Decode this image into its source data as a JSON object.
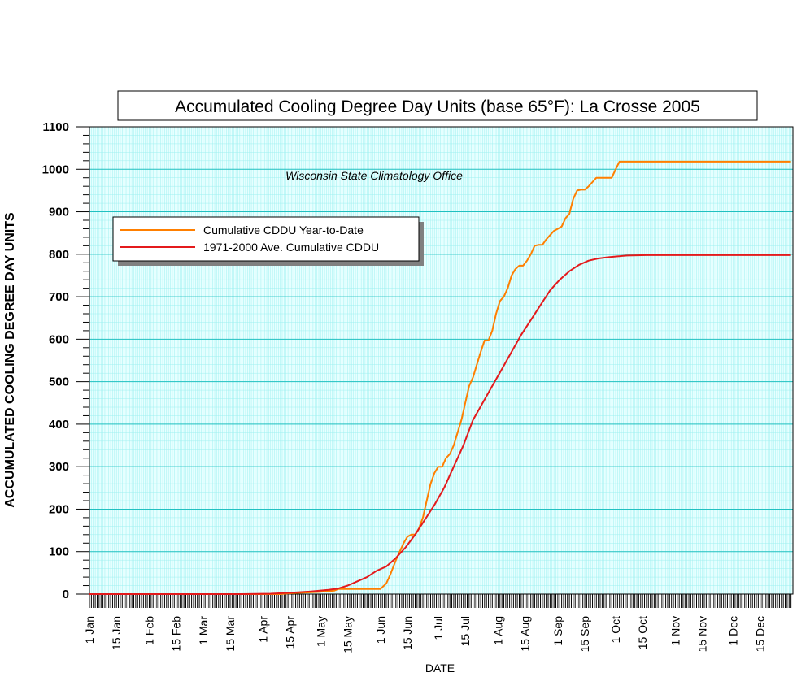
{
  "chart_data": {
    "type": "line",
    "title": "Accumulated Cooling Degree Day Units (base 65°F): La Crosse 2005",
    "annotation": "Wisconsin State Climatology Office",
    "xlabel": "DATE",
    "ylabel": "ACCUMULATED COOLING DEGREE DAY UNITS",
    "ylim": [
      0,
      1100
    ],
    "xlim_day_of_year": [
      1,
      365
    ],
    "y_ticks": [
      0,
      100,
      200,
      300,
      400,
      500,
      600,
      700,
      800,
      900,
      1000,
      1100
    ],
    "x_ticks": [
      {
        "label": "1 Jan",
        "day": 1
      },
      {
        "label": "15 Jan",
        "day": 15
      },
      {
        "label": "1 Feb",
        "day": 32
      },
      {
        "label": "15 Feb",
        "day": 46
      },
      {
        "label": "1 Mar",
        "day": 60
      },
      {
        "label": "15 Mar",
        "day": 74
      },
      {
        "label": "1 Apr",
        "day": 91
      },
      {
        "label": "15 Apr",
        "day": 105
      },
      {
        "label": "1 May",
        "day": 121
      },
      {
        "label": "15 May",
        "day": 135
      },
      {
        "label": "1 Jun",
        "day": 152
      },
      {
        "label": "15 Jun",
        "day": 166
      },
      {
        "label": "1 Jul",
        "day": 182
      },
      {
        "label": "15 Jul",
        "day": 196
      },
      {
        "label": "1 Aug",
        "day": 213
      },
      {
        "label": "15 Aug",
        "day": 227
      },
      {
        "label": "1 Sep",
        "day": 244
      },
      {
        "label": "15 Sep",
        "day": 258
      },
      {
        "label": "1 Oct",
        "day": 274
      },
      {
        "label": "15 Oct",
        "day": 288
      },
      {
        "label": "1 Nov",
        "day": 305
      },
      {
        "label": "15 Nov",
        "day": 319
      },
      {
        "label": "1 Dec",
        "day": 335
      },
      {
        "label": "15 Dec",
        "day": 349
      }
    ],
    "grid": true,
    "legend_position": "upper-left",
    "series": [
      {
        "name": "Cumulative CDDU Year-to-Date",
        "color": "#ff7f00",
        "points": [
          [
            1,
            0
          ],
          [
            100,
            0
          ],
          [
            105,
            2
          ],
          [
            110,
            3
          ],
          [
            120,
            5
          ],
          [
            128,
            8
          ],
          [
            130,
            12
          ],
          [
            150,
            12
          ],
          [
            152,
            12
          ],
          [
            155,
            25
          ],
          [
            157,
            45
          ],
          [
            160,
            80
          ],
          [
            162,
            100
          ],
          [
            164,
            120
          ],
          [
            166,
            135
          ],
          [
            168,
            140
          ],
          [
            170,
            140
          ],
          [
            172,
            155
          ],
          [
            174,
            180
          ],
          [
            176,
            220
          ],
          [
            178,
            260
          ],
          [
            180,
            285
          ],
          [
            182,
            300
          ],
          [
            184,
            300
          ],
          [
            186,
            320
          ],
          [
            188,
            330
          ],
          [
            190,
            350
          ],
          [
            192,
            380
          ],
          [
            194,
            410
          ],
          [
            196,
            450
          ],
          [
            198,
            490
          ],
          [
            200,
            510
          ],
          [
            202,
            540
          ],
          [
            204,
            570
          ],
          [
            206,
            597
          ],
          [
            208,
            597
          ],
          [
            210,
            620
          ],
          [
            212,
            660
          ],
          [
            214,
            690
          ],
          [
            216,
            700
          ],
          [
            218,
            720
          ],
          [
            220,
            750
          ],
          [
            222,
            765
          ],
          [
            224,
            773
          ],
          [
            226,
            773
          ],
          [
            228,
            785
          ],
          [
            230,
            800
          ],
          [
            232,
            820
          ],
          [
            234,
            822
          ],
          [
            236,
            822
          ],
          [
            238,
            835
          ],
          [
            240,
            845
          ],
          [
            242,
            855
          ],
          [
            244,
            860
          ],
          [
            246,
            865
          ],
          [
            248,
            885
          ],
          [
            250,
            895
          ],
          [
            252,
            930
          ],
          [
            254,
            950
          ],
          [
            256,
            952
          ],
          [
            258,
            952
          ],
          [
            260,
            960
          ],
          [
            262,
            970
          ],
          [
            264,
            980
          ],
          [
            266,
            980
          ],
          [
            272,
            980
          ],
          [
            274,
            1000
          ],
          [
            276,
            1018
          ],
          [
            278,
            1018
          ],
          [
            365,
            1018
          ]
        ]
      },
      {
        "name": "1971-2000 Ave. Cumulative CDDU",
        "color": "#e41a1c",
        "points": [
          [
            1,
            0
          ],
          [
            80,
            0
          ],
          [
            95,
            1
          ],
          [
            105,
            3
          ],
          [
            115,
            6
          ],
          [
            125,
            10
          ],
          [
            130,
            13
          ],
          [
            135,
            20
          ],
          [
            140,
            30
          ],
          [
            145,
            40
          ],
          [
            150,
            55
          ],
          [
            155,
            65
          ],
          [
            160,
            85
          ],
          [
            165,
            110
          ],
          [
            170,
            140
          ],
          [
            175,
            175
          ],
          [
            180,
            210
          ],
          [
            185,
            250
          ],
          [
            190,
            300
          ],
          [
            195,
            350
          ],
          [
            200,
            410
          ],
          [
            205,
            450
          ],
          [
            210,
            490
          ],
          [
            215,
            530
          ],
          [
            220,
            570
          ],
          [
            225,
            610
          ],
          [
            230,
            645
          ],
          [
            235,
            680
          ],
          [
            240,
            715
          ],
          [
            245,
            740
          ],
          [
            250,
            760
          ],
          [
            255,
            775
          ],
          [
            260,
            785
          ],
          [
            265,
            790
          ],
          [
            270,
            793
          ],
          [
            275,
            795
          ],
          [
            280,
            797
          ],
          [
            290,
            798
          ],
          [
            365,
            798
          ]
        ]
      }
    ]
  }
}
